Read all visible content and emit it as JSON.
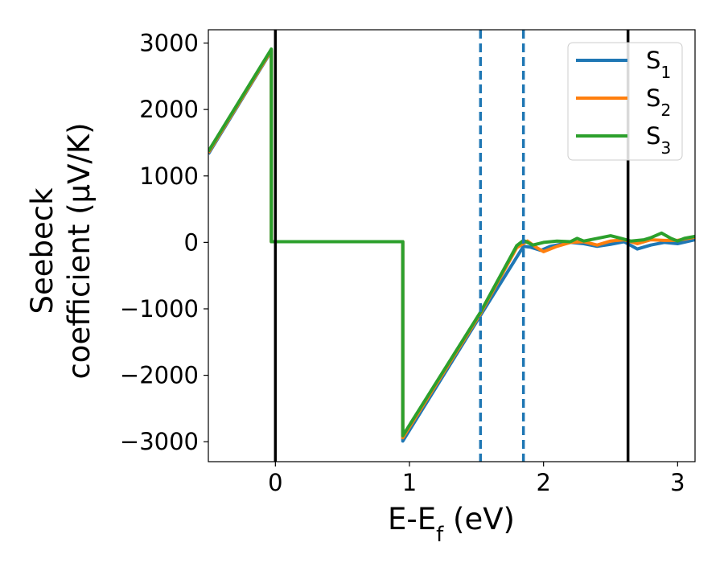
{
  "chart_data": {
    "type": "line",
    "title": "",
    "xlabel": "E-E_f (eV)",
    "ylabel_lines": [
      "Seebeck",
      "coefficient  (μV/K)"
    ],
    "xlim": [
      -0.5,
      3.13
    ],
    "ylim": [
      -3300,
      3200
    ],
    "xticks": [
      0,
      1,
      2,
      3
    ],
    "yticks": [
      -3000,
      -2000,
      -1000,
      0,
      1000,
      2000,
      3000
    ],
    "grid": false,
    "legend_position": "top-right",
    "vertical_lines": [
      {
        "x": 0.0,
        "style": "solid",
        "color": "#000000"
      },
      {
        "x": 1.53,
        "style": "dashed",
        "color": "#1f77b4"
      },
      {
        "x": 1.85,
        "style": "dashed",
        "color": "#1f77b4"
      },
      {
        "x": 2.63,
        "style": "solid",
        "color": "#000000"
      }
    ],
    "series": [
      {
        "name": "S_1",
        "color": "#1f77b4",
        "points": [
          [
            -0.5,
            1330
          ],
          [
            -0.03,
            2880
          ],
          [
            -0.03,
            10
          ],
          [
            0.95,
            10
          ],
          [
            0.95,
            -2990
          ],
          [
            1.53,
            -1100
          ],
          [
            1.85,
            -60
          ],
          [
            1.9,
            -70
          ],
          [
            1.98,
            -120
          ],
          [
            2.05,
            -60
          ],
          [
            2.2,
            0
          ],
          [
            2.3,
            -20
          ],
          [
            2.4,
            -60
          ],
          [
            2.5,
            -30
          ],
          [
            2.6,
            10
          ],
          [
            2.7,
            -100
          ],
          [
            2.8,
            -40
          ],
          [
            2.9,
            0
          ],
          [
            3.0,
            -20
          ],
          [
            3.13,
            40
          ]
        ]
      },
      {
        "name": "S_2",
        "color": "#ff7f0e",
        "points": [
          [
            -0.5,
            1350
          ],
          [
            -0.03,
            2890
          ],
          [
            -0.03,
            10
          ],
          [
            0.95,
            10
          ],
          [
            0.95,
            -2940
          ],
          [
            1.53,
            -1070
          ],
          [
            1.8,
            -80
          ],
          [
            1.88,
            20
          ],
          [
            1.95,
            -80
          ],
          [
            2.0,
            -140
          ],
          [
            2.1,
            -60
          ],
          [
            2.2,
            0
          ],
          [
            2.3,
            10
          ],
          [
            2.4,
            -40
          ],
          [
            2.5,
            20
          ],
          [
            2.6,
            40
          ],
          [
            2.7,
            -20
          ],
          [
            2.8,
            40
          ],
          [
            2.9,
            30
          ],
          [
            3.0,
            30
          ],
          [
            3.13,
            80
          ]
        ]
      },
      {
        "name": "S_3",
        "color": "#2ca02c",
        "points": [
          [
            -0.5,
            1370
          ],
          [
            -0.03,
            2910
          ],
          [
            -0.03,
            10
          ],
          [
            0.95,
            10
          ],
          [
            0.95,
            -2910
          ],
          [
            1.53,
            -1050
          ],
          [
            1.8,
            -50
          ],
          [
            1.85,
            30
          ],
          [
            1.92,
            -40
          ],
          [
            2.0,
            0
          ],
          [
            2.1,
            20
          ],
          [
            2.2,
            10
          ],
          [
            2.25,
            60
          ],
          [
            2.3,
            20
          ],
          [
            2.4,
            60
          ],
          [
            2.5,
            100
          ],
          [
            2.58,
            60
          ],
          [
            2.65,
            20
          ],
          [
            2.75,
            40
          ],
          [
            2.8,
            70
          ],
          [
            2.88,
            140
          ],
          [
            2.95,
            60
          ],
          [
            3.0,
            20
          ],
          [
            3.05,
            60
          ],
          [
            3.13,
            90
          ]
        ]
      }
    ]
  }
}
